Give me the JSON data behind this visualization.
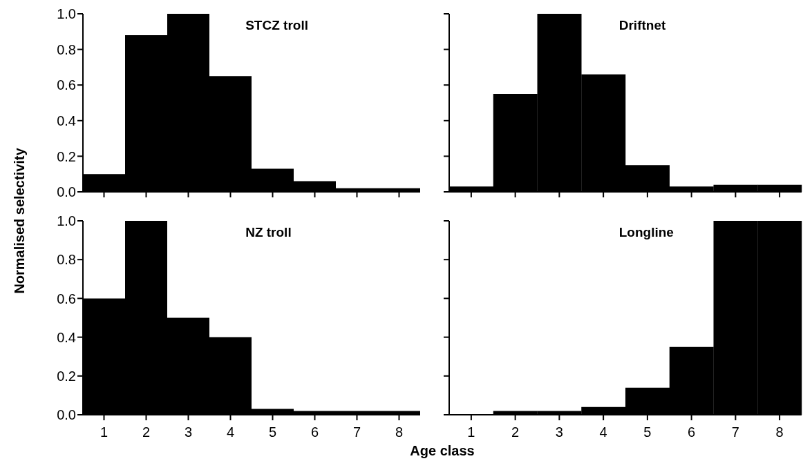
{
  "chart_data": [
    {
      "type": "bar",
      "title": "STCZ troll",
      "ylabel": "Normalised selectivity",
      "categories": [
        "1",
        "2",
        "3",
        "4",
        "5",
        "6",
        "7",
        "8"
      ],
      "values": [
        0.1,
        0.88,
        1.0,
        0.65,
        0.13,
        0.06,
        0.02,
        0.02
      ],
      "color": "#000000",
      "ylim": [
        0,
        1
      ],
      "yticks": [
        {
          "value": 0,
          "label": "0.0"
        },
        {
          "value": 0.2,
          "label": "0.2"
        },
        {
          "value": 0.4,
          "label": "0.4"
        },
        {
          "value": 0.6,
          "label": "0.6"
        },
        {
          "value": 0.8,
          "label": "0.8"
        },
        {
          "value": 1,
          "label": "1.0"
        }
      ],
      "tick_labels": "y"
    },
    {
      "type": "bar",
      "title": "Driftnet",
      "categories": [
        "1",
        "2",
        "3",
        "4",
        "5",
        "6",
        "7",
        "8"
      ],
      "values": [
        0.03,
        0.55,
        1.0,
        0.66,
        0.15,
        0.03,
        0.04,
        0.04
      ],
      "color": "#000000",
      "ylim": [
        0,
        1
      ],
      "yticks": [
        0,
        0.2,
        0.4,
        0.6,
        0.8,
        1
      ],
      "tick_labels": false
    },
    {
      "type": "bar",
      "title": "NZ troll",
      "xlabel": "Age class",
      "categories": [
        "1",
        "2",
        "3",
        "4",
        "5",
        "6",
        "7",
        "8"
      ],
      "values": [
        0.6,
        1.0,
        0.5,
        0.4,
        0.03,
        0.02,
        0.02,
        0.02
      ],
      "color": "#000000",
      "ylim": [
        0,
        1
      ],
      "yticks": [
        {
          "value": 0,
          "label": "0.0"
        },
        {
          "value": 0.2,
          "label": "0.2"
        },
        {
          "value": 0.4,
          "label": "0.4"
        },
        {
          "value": 0.6,
          "label": "0.6"
        },
        {
          "value": 0.8,
          "label": "0.8"
        },
        {
          "value": 1,
          "label": "1.0"
        }
      ]
    },
    {
      "type": "bar",
      "title": "Longline",
      "categories": [
        "1",
        "2",
        "3",
        "4",
        "5",
        "6",
        "7",
        "8"
      ],
      "values": [
        0.0,
        0.02,
        0.02,
        0.04,
        0.14,
        0.35,
        1.0,
        1.0
      ],
      "color": "#000000",
      "ylim": [
        0,
        1
      ],
      "yticks": [
        0,
        0.2,
        0.4,
        0.6,
        0.8,
        1
      ],
      "tick_labels": "x"
    }
  ]
}
